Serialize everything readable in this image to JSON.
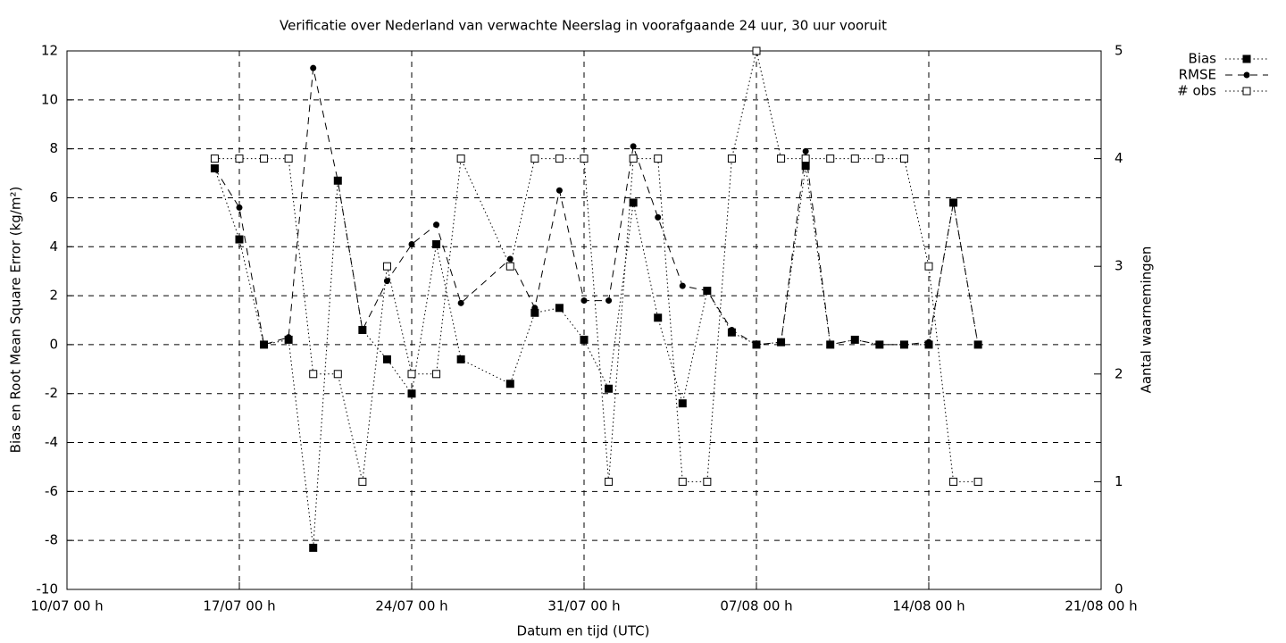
{
  "chart_data": {
    "type": "line",
    "title": "Verificatie over Nederland van verwachte Neerslag in voorafgaande 24 uur, 30 uur vooruit",
    "xlabel": "Datum en tijd (UTC)",
    "ylabel": "Bias en Root Mean Square Error (kg/m²)",
    "y2label": "Aantal waarnemingen",
    "x": [
      "16/07 00 h",
      "17/07 00 h",
      "18/07 00 h",
      "19/07 00 h",
      "20/07 00 h",
      "21/07 00 h",
      "22/07 00 h",
      "23/07 00 h",
      "24/07 00 h",
      "25/07 00 h",
      "26/07 00 h",
      "28/07 00 h",
      "29/07 00 h",
      "30/07 00 h",
      "31/07 00 h",
      "01/08 00 h",
      "02/08 00 h",
      "03/08 00 h",
      "04/08 00 h",
      "05/08 00 h",
      "06/08 00 h",
      "07/08 00 h",
      "08/08 00 h",
      "09/08 00 h",
      "10/08 00 h",
      "11/08 00 h",
      "12/08 00 h",
      "13/08 00 h",
      "14/08 00 h",
      "15/08 00 h",
      "16/08 00 h"
    ],
    "series": [
      {
        "name": "Bias",
        "color": "#000000",
        "line_style": "dotted",
        "marker": "filled-square",
        "values": [
          7.2,
          4.3,
          0,
          0.2,
          -8.3,
          6.7,
          0.6,
          -0.6,
          -2.0,
          4.1,
          -0.6,
          -1.6,
          1.3,
          1.5,
          0.2,
          -1.8,
          5.8,
          1.1,
          -2.4,
          2.2,
          0.5,
          0,
          0.1,
          7.3,
          0,
          0.2,
          0,
          0,
          0,
          5.8,
          0
        ]
      },
      {
        "name": "RMSE",
        "color": "#000000",
        "line_style": "dashed",
        "marker": "filled-circle",
        "values": [
          7.2,
          5.6,
          0,
          0.3,
          11.3,
          6.7,
          0.6,
          2.6,
          4.1,
          4.9,
          1.7,
          3.5,
          1.5,
          6.3,
          1.8,
          1.8,
          8.1,
          5.2,
          2.4,
          2.2,
          0.6,
          0,
          0.1,
          7.9,
          0,
          0.2,
          0,
          0,
          0.1,
          5.8,
          0
        ]
      },
      {
        "name": "# obs",
        "color": "#000000",
        "line_style": "dotted",
        "marker": "open-square",
        "axis": "y2",
        "values": [
          4,
          4,
          4,
          4,
          2,
          2,
          1,
          3,
          2,
          2,
          4,
          3,
          4,
          4,
          4,
          1,
          4,
          4,
          1,
          1,
          4,
          5,
          4,
          4,
          4,
          4,
          4,
          4,
          3,
          1,
          1
        ]
      }
    ],
    "xlim": [
      "10/07 00 h",
      "21/08 00 h"
    ],
    "xticks": [
      "10/07 00 h",
      "17/07 00 h",
      "24/07 00 h",
      "31/07 00 h",
      "07/08 00 h",
      "14/08 00 h",
      "21/08 00 h"
    ],
    "ylim": [
      -10,
      12
    ],
    "yticks": [
      -10,
      -8,
      -6,
      -4,
      -2,
      0,
      2,
      4,
      6,
      8,
      10,
      12
    ],
    "y2lim": [
      0,
      5
    ],
    "y2ticks": [
      0,
      1,
      2,
      3,
      4,
      5
    ],
    "grid": true,
    "legend": "outside-top-right"
  }
}
